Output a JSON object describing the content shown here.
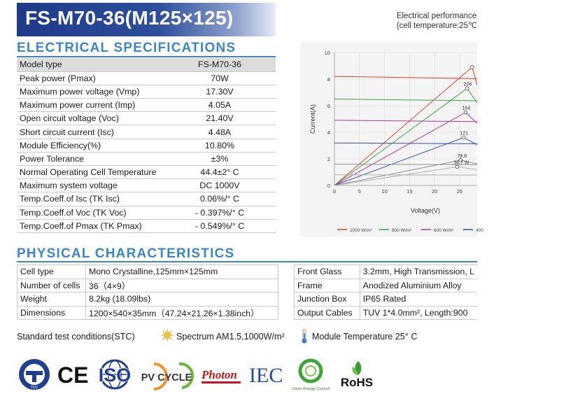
{
  "header": {
    "title": "FS-M70-36(M125×125)"
  },
  "electrical": {
    "heading": "ELECTRICAL SPECIFICATIONS",
    "header_row": {
      "label": "Model type",
      "value": "FS-M70-36"
    },
    "rows": [
      {
        "label": "Peak power (Pmax)",
        "value": "70W"
      },
      {
        "label": "Maximum power voltage (Vmp)",
        "value": "17.30V"
      },
      {
        "label": "Maximum power current (Imp)",
        "value": "4.05A"
      },
      {
        "label": "Open circuit voltage (Voc)",
        "value": "21.40V"
      },
      {
        "label": "Short circuit current (Isc)",
        "value": "4.48A"
      },
      {
        "label": "Module Efficiency(%)",
        "value": "10.80%"
      },
      {
        "label": "Power Tolerance",
        "value": "±3%"
      },
      {
        "label": "Normal Operating Cell Temperature",
        "value": "44.4±2° C"
      },
      {
        "label": "Maximum system voltage",
        "value": "DC 1000V"
      },
      {
        "label": "Temp.Coeff.of Isc (TK Isc)",
        "value": "0.06%/° C"
      },
      {
        "label": "Temp.Coeff.of Voc (TK Voc)",
        "value": "- 0.397%/° C"
      },
      {
        "label": "Temp.Coeff.of Pmax (TK Pmax)",
        "value": "- 0.549%/° C"
      }
    ]
  },
  "physical": {
    "heading": "PHYSICAL CHARACTERISTICS",
    "left_rows": [
      {
        "label": "Cell type",
        "value": "Mono Crystalline,125mm×125mm"
      },
      {
        "label": "Number of cells",
        "value": "36（4×9）"
      },
      {
        "label": "Weight",
        "value": "8.2kg (18.09lbs)"
      },
      {
        "label": "Dimensions",
        "value": "1200×540×35mm（47.24×21.26×1.38inch）"
      }
    ],
    "right_rows": [
      {
        "label": "Front Glass",
        "value": "3.2mm, High Transmission, L"
      },
      {
        "label": "Frame",
        "value": "Anodized Aluminium Alloy"
      },
      {
        "label": "Junction Box",
        "value": "IP65 Rated"
      },
      {
        "label": "Output Cables",
        "value": "TUV 1*4.0mm², Length:900"
      }
    ]
  },
  "stc": {
    "label": "Standard test conditions(STC)",
    "spectrum": "Spectrum AM1.5,1000W/m²",
    "module_temp": "Module Temperature 25° C"
  },
  "chart_title": {
    "line1": "Electrical performance",
    "line2": "(cell temperature:25℃"
  },
  "chart_data": {
    "type": "line",
    "xlabel": "Voltage(V)",
    "ylabel": "Current(A)",
    "xlim": [
      0,
      28.5
    ],
    "ylim": [
      0,
      10
    ],
    "x_ticks": [
      "0",
      "5",
      "10",
      "15",
      "20",
      "25"
    ],
    "y_ticks": [
      "0",
      "2",
      "4",
      "6",
      "8",
      "10"
    ],
    "legend": [
      "1000 W/m²",
      "800 W/m²",
      "600 W/m²",
      "400"
    ],
    "series": [
      {
        "name": "1000 W/m²",
        "color": "#d2452c",
        "isc": 8.2,
        "vmp": 27.5,
        "imp": 8.9,
        "label": ""
      },
      {
        "name": "800 W/m²",
        "color": "#3da14a",
        "isc": 6.5,
        "vmp": 26.5,
        "imp": 7.3,
        "label": "206"
      },
      {
        "name": "600 W/m²",
        "color": "#b3399a",
        "isc": 4.9,
        "vmp": 26.2,
        "imp": 5.5,
        "label": "164"
      },
      {
        "name": "400",
        "color": "#2f4fb0",
        "isc": 3.2,
        "vmp": 25.8,
        "imp": 3.6,
        "label": "121"
      },
      {
        "name": "",
        "color": "#8f8f8f",
        "isc": 1.6,
        "vmp": 25.2,
        "imp": 1.9,
        "label": "78.8"
      },
      {
        "name": "",
        "color": "#b0b0b0",
        "isc": 0.8,
        "vmp": 24.5,
        "imp": 1.4,
        "label": "36.7 W"
      }
    ]
  },
  "logos": [
    "TUV",
    "CE",
    "ISO",
    "PV CYCLE",
    "Photon",
    "IEC",
    "Clean Energy Council",
    "RoHS"
  ]
}
